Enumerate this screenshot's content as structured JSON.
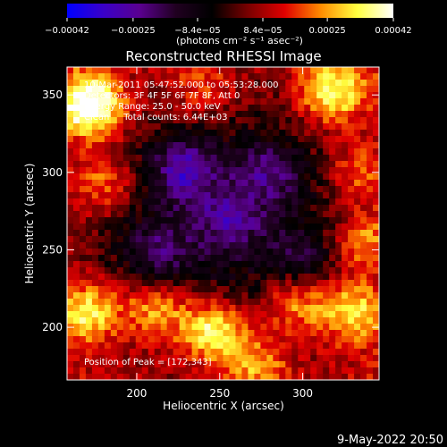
{
  "colorbar": {
    "ticks": [
      {
        "value": -0.00042,
        "label": "−0.00042"
      },
      {
        "value": -0.00025,
        "label": "−0.00025"
      },
      {
        "value": -8.4e-05,
        "label": "−8.4e−05"
      },
      {
        "value": 8.4e-05,
        "label": "8.4e−05"
      },
      {
        "value": 0.00025,
        "label": "0.00025"
      },
      {
        "value": 0.00042,
        "label": "0.00042"
      }
    ],
    "range": [
      -0.00042,
      0.00042
    ],
    "units_label": "(photons cm⁻² s⁻¹ asec⁻²)",
    "colors": [
      "#0000ff",
      "#3a00c8",
      "#5a0090",
      "#200020",
      "#000000",
      "#7a0000",
      "#e00000",
      "#ff8c00",
      "#ffff40",
      "#ffffff"
    ]
  },
  "chart_data": {
    "type": "heatmap",
    "title": "Reconstructed RHESSI Image",
    "xlabel": "Heliocentric X (arcsec)",
    "ylabel": "Heliocentric Y (arcsec)",
    "xlim": [
      158,
      346
    ],
    "ylim": [
      166,
      368
    ],
    "xticks": [
      200,
      250,
      300
    ],
    "yticks": [
      200,
      250,
      300,
      350
    ],
    "annotations": [
      "10-Mar-2011 05:47:52.000 to 05:53:28.000",
      "Detectors: 3F 4F 5F 6F 7F 8F, Att 0",
      "Energy Range: 25.0 - 50.0 keV",
      "Clean     Total counts: 6.44E+03"
    ],
    "peak_label": "Position of Peak = [172,343]",
    "peak": [
      172,
      343
    ],
    "sources": [
      {
        "x": 172,
        "y": 343,
        "intensity": 0.00042
      },
      {
        "x": 246,
        "y": 198,
        "intensity": 0.00034
      },
      {
        "x": 318,
        "y": 352,
        "intensity": 0.0003
      },
      {
        "x": 170,
        "y": 210,
        "intensity": 0.00028
      },
      {
        "x": 330,
        "y": 210,
        "intensity": 0.00027
      },
      {
        "x": 212,
        "y": 212,
        "intensity": 0.00024
      },
      {
        "x": 295,
        "y": 215,
        "intensity": 0.00022
      },
      {
        "x": 338,
        "y": 255,
        "intensity": 0.00021
      },
      {
        "x": 180,
        "y": 292,
        "intensity": 0.00018
      },
      {
        "x": 335,
        "y": 300,
        "intensity": 0.00016
      },
      {
        "x": 240,
        "y": 355,
        "intensity": 0.00014
      },
      {
        "x": 272,
        "y": 175,
        "intensity": 0.0002
      },
      {
        "x": 228,
        "y": 302,
        "intensity": -0.00024
      },
      {
        "x": 212,
        "y": 248,
        "intensity": -0.00016
      },
      {
        "x": 280,
        "y": 300,
        "intensity": -0.00018
      },
      {
        "x": 300,
        "y": 245,
        "intensity": -0.00012
      },
      {
        "x": 256,
        "y": 270,
        "intensity": -0.00014
      }
    ]
  },
  "footer": {
    "date": "9-May-2022 20:50"
  }
}
